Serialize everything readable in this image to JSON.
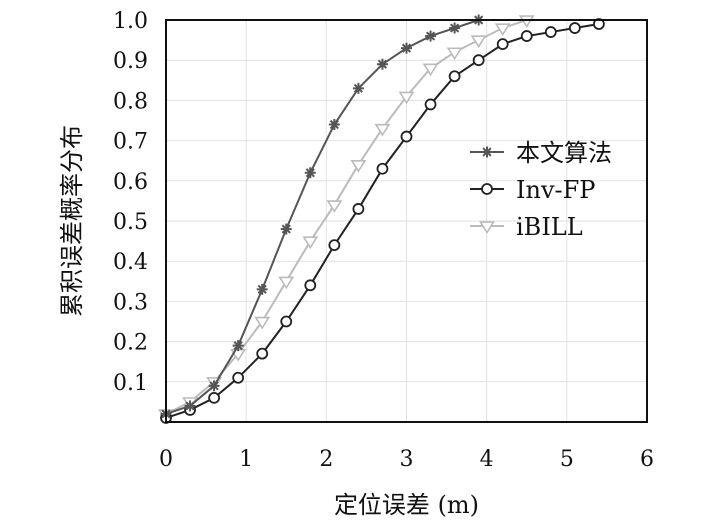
{
  "chart_data": {
    "type": "line",
    "title": "",
    "xlabel": "定位误差 (m)",
    "ylabel": "累积误差概率分布",
    "xlim": [
      0,
      6
    ],
    "ylim": [
      0,
      1.0
    ],
    "x_ticks": [
      0,
      1,
      2,
      3,
      4,
      5,
      6
    ],
    "x_tick_labels": [
      "0",
      "1",
      "2",
      "3",
      "4",
      "5",
      "6"
    ],
    "y_ticks": [
      0.1,
      0.2,
      0.3,
      0.4,
      0.5,
      0.6,
      0.7,
      0.8,
      0.9,
      1.0
    ],
    "y_tick_labels": [
      "0.1",
      "0.2",
      "0.3",
      "0.4",
      "0.5",
      "0.6",
      "0.7",
      "0.8",
      "0.9",
      "1.0"
    ],
    "grid": true,
    "legend_position": "right-center",
    "series": [
      {
        "name": "本文算法",
        "color": "#555555",
        "marker": "asterisk",
        "x": [
          0,
          0.3,
          0.6,
          0.9,
          1.2,
          1.5,
          1.8,
          2.1,
          2.4,
          2.7,
          3.0,
          3.3,
          3.6,
          3.9
        ],
        "y": [
          0.02,
          0.04,
          0.09,
          0.19,
          0.33,
          0.48,
          0.62,
          0.74,
          0.83,
          0.89,
          0.93,
          0.96,
          0.98,
          1.0
        ]
      },
      {
        "name": "Inv-FP",
        "color": "#222222",
        "marker": "circle",
        "x": [
          0,
          0.3,
          0.6,
          0.9,
          1.2,
          1.5,
          1.8,
          2.1,
          2.4,
          2.7,
          3.0,
          3.3,
          3.6,
          3.9,
          4.2,
          4.5,
          4.8,
          5.1,
          5.4
        ],
        "y": [
          0.01,
          0.03,
          0.06,
          0.11,
          0.17,
          0.25,
          0.34,
          0.44,
          0.53,
          0.63,
          0.71,
          0.79,
          0.86,
          0.9,
          0.94,
          0.96,
          0.97,
          0.98,
          0.99
        ]
      },
      {
        "name": "iBILL",
        "color": "#bbbbbb",
        "marker": "triangle-down",
        "x": [
          0,
          0.3,
          0.6,
          0.9,
          1.2,
          1.5,
          1.8,
          2.1,
          2.4,
          2.7,
          3.0,
          3.3,
          3.6,
          3.9,
          4.2,
          4.5
        ],
        "y": [
          0.02,
          0.05,
          0.1,
          0.17,
          0.25,
          0.35,
          0.45,
          0.54,
          0.64,
          0.73,
          0.81,
          0.88,
          0.92,
          0.95,
          0.98,
          1.0
        ]
      }
    ]
  }
}
